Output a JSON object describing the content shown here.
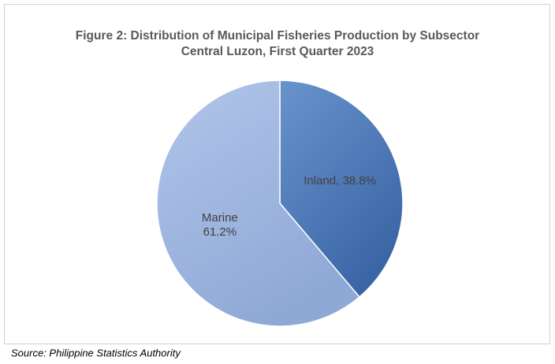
{
  "chart_data": {
    "type": "pie",
    "title": "Figure 2: Distribution of Municipal Fisheries Production by Subsector",
    "subtitle": "Central Luzon, First Quarter 2023",
    "values": [
      38.8,
      61.2
    ],
    "value_labels": [
      "Inland, 38.8%",
      "Marine\n61.2%"
    ],
    "colors": [
      "#4f7dbd",
      "#a3b8e0"
    ],
    "source": "Source: Philippine Statistics Authority"
  }
}
